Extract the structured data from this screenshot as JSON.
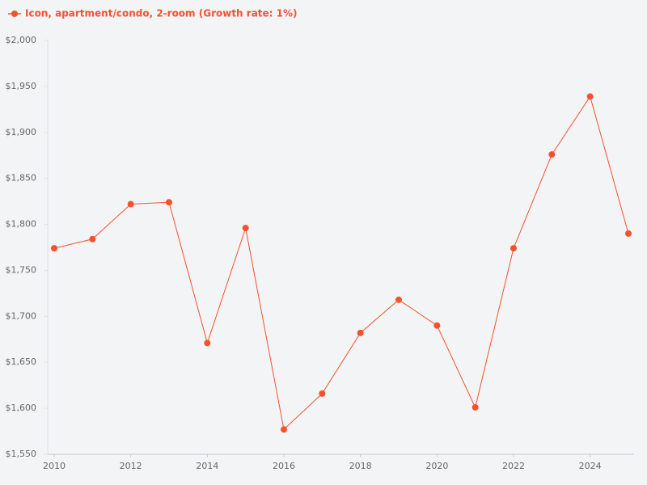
{
  "chart_data": {
    "type": "line",
    "x": [
      2010,
      2011,
      2012,
      2013,
      2014,
      2015,
      2016,
      2017,
      2018,
      2019,
      2020,
      2021,
      2022,
      2023,
      2024,
      2025
    ],
    "series": [
      {
        "name": "Icon, apartment/condo, 2-room (Growth rate: 1%)",
        "color": "#f4522d",
        "values": [
          1774,
          1784,
          1822,
          1824,
          1671,
          1796,
          1577,
          1616,
          1682,
          1718,
          1690,
          1601,
          1774,
          1876,
          1939,
          1790
        ]
      }
    ],
    "xlim": [
      2010,
      2025
    ],
    "xticks": [
      2010,
      2012,
      2014,
      2016,
      2018,
      2020,
      2022,
      2024
    ],
    "ylim": [
      1550,
      2000
    ],
    "yticks": [
      {
        "value": 1550,
        "label": "$1,550"
      },
      {
        "value": 1600,
        "label": "$1,600"
      },
      {
        "value": 1650,
        "label": "$1,650"
      },
      {
        "value": 1700,
        "label": "$1,700"
      },
      {
        "value": 1750,
        "label": "$1,750"
      },
      {
        "value": 1800,
        "label": "$1,800"
      },
      {
        "value": 1850,
        "label": "$1,850"
      },
      {
        "value": 1900,
        "label": "$1,900"
      },
      {
        "value": 1950,
        "label": "$1,950"
      },
      {
        "value": 2000,
        "label": "$2,000"
      }
    ],
    "grid": false,
    "legend": "top-left"
  }
}
